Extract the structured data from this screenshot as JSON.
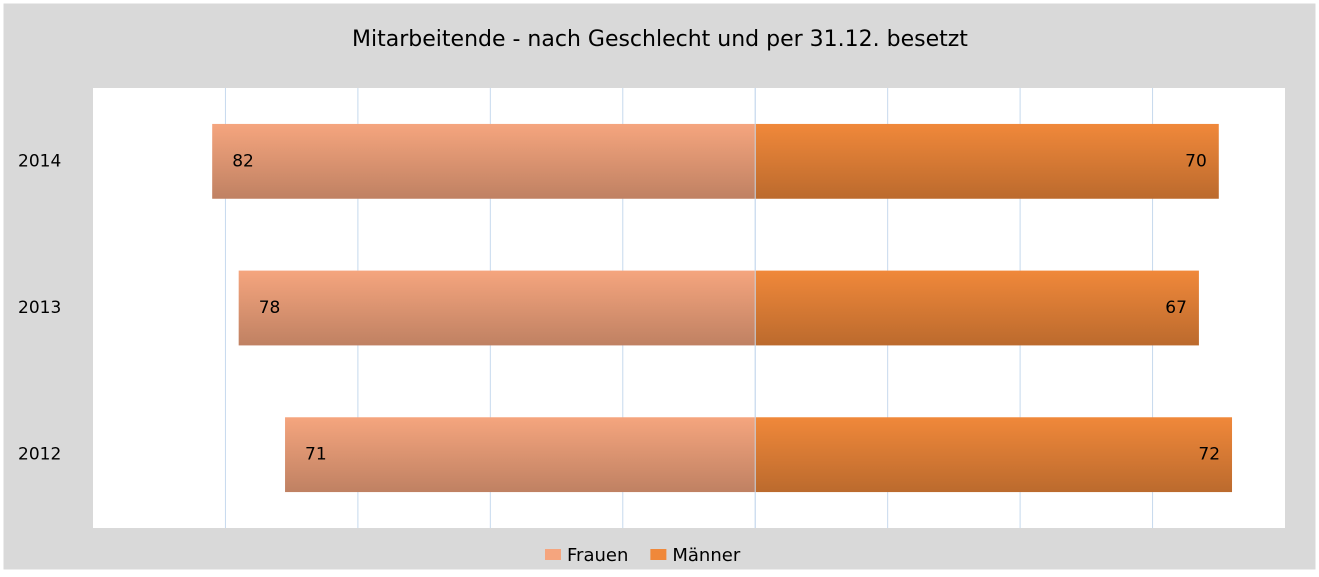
{
  "chart_data": {
    "type": "butterfly-bar",
    "title": "Mitarbeitende - nach Geschlecht und per 31.12. besetzt",
    "categories": [
      "2014",
      "2013",
      "2012"
    ],
    "series": [
      {
        "name": "Frauen",
        "color": "#f5a57e",
        "side": "left",
        "values": [
          82,
          78,
          71
        ]
      },
      {
        "name": "Männer",
        "color": "#f0883a",
        "side": "right",
        "values": [
          70,
          67,
          72
        ]
      }
    ],
    "xlim": [
      -100,
      80
    ],
    "xticks": [
      -80,
      -60,
      -40,
      -20,
      0,
      20,
      40,
      60
    ],
    "tick_labels": false,
    "grid": true,
    "legend": "bottom"
  }
}
